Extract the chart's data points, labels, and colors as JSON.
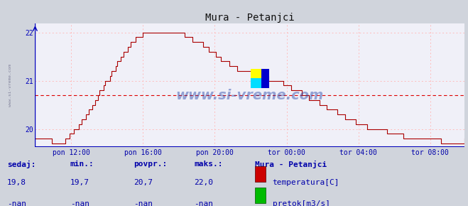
{
  "title": "Mura - Petanjci",
  "bg_color": "#d0d4dc",
  "plot_bg_color": "#f0f0f8",
  "line_color": "#aa0000",
  "grid_dotted_color": "#ffaaaa",
  "axis_color": "#0000bb",
  "text_color": "#0000aa",
  "watermark": "www.si-vreme.com",
  "watermark_color": "#2244aa",
  "yticks": [
    20,
    21,
    22
  ],
  "avg_line": 20.7,
  "x_labels": [
    "pon 12:00",
    "pon 16:00",
    "pon 20:00",
    "tor 00:00",
    "tor 04:00",
    "tor 08:00"
  ],
  "footer_labels": [
    "sedaj:",
    "min.:",
    "povpr.:",
    "maks.:"
  ],
  "footer_values_temp": [
    "19,8",
    "19,7",
    "20,7",
    "22,0"
  ],
  "footer_values_flow": [
    "-nan",
    "-nan",
    "-nan",
    "-nan"
  ],
  "legend_title": "Mura - Petanjci",
  "legend_temp": "temperatura[C]",
  "legend_flow": "pretok[m3/s]",
  "temp_color": "#cc0000",
  "flow_color": "#00bb00",
  "n_points": 288
}
